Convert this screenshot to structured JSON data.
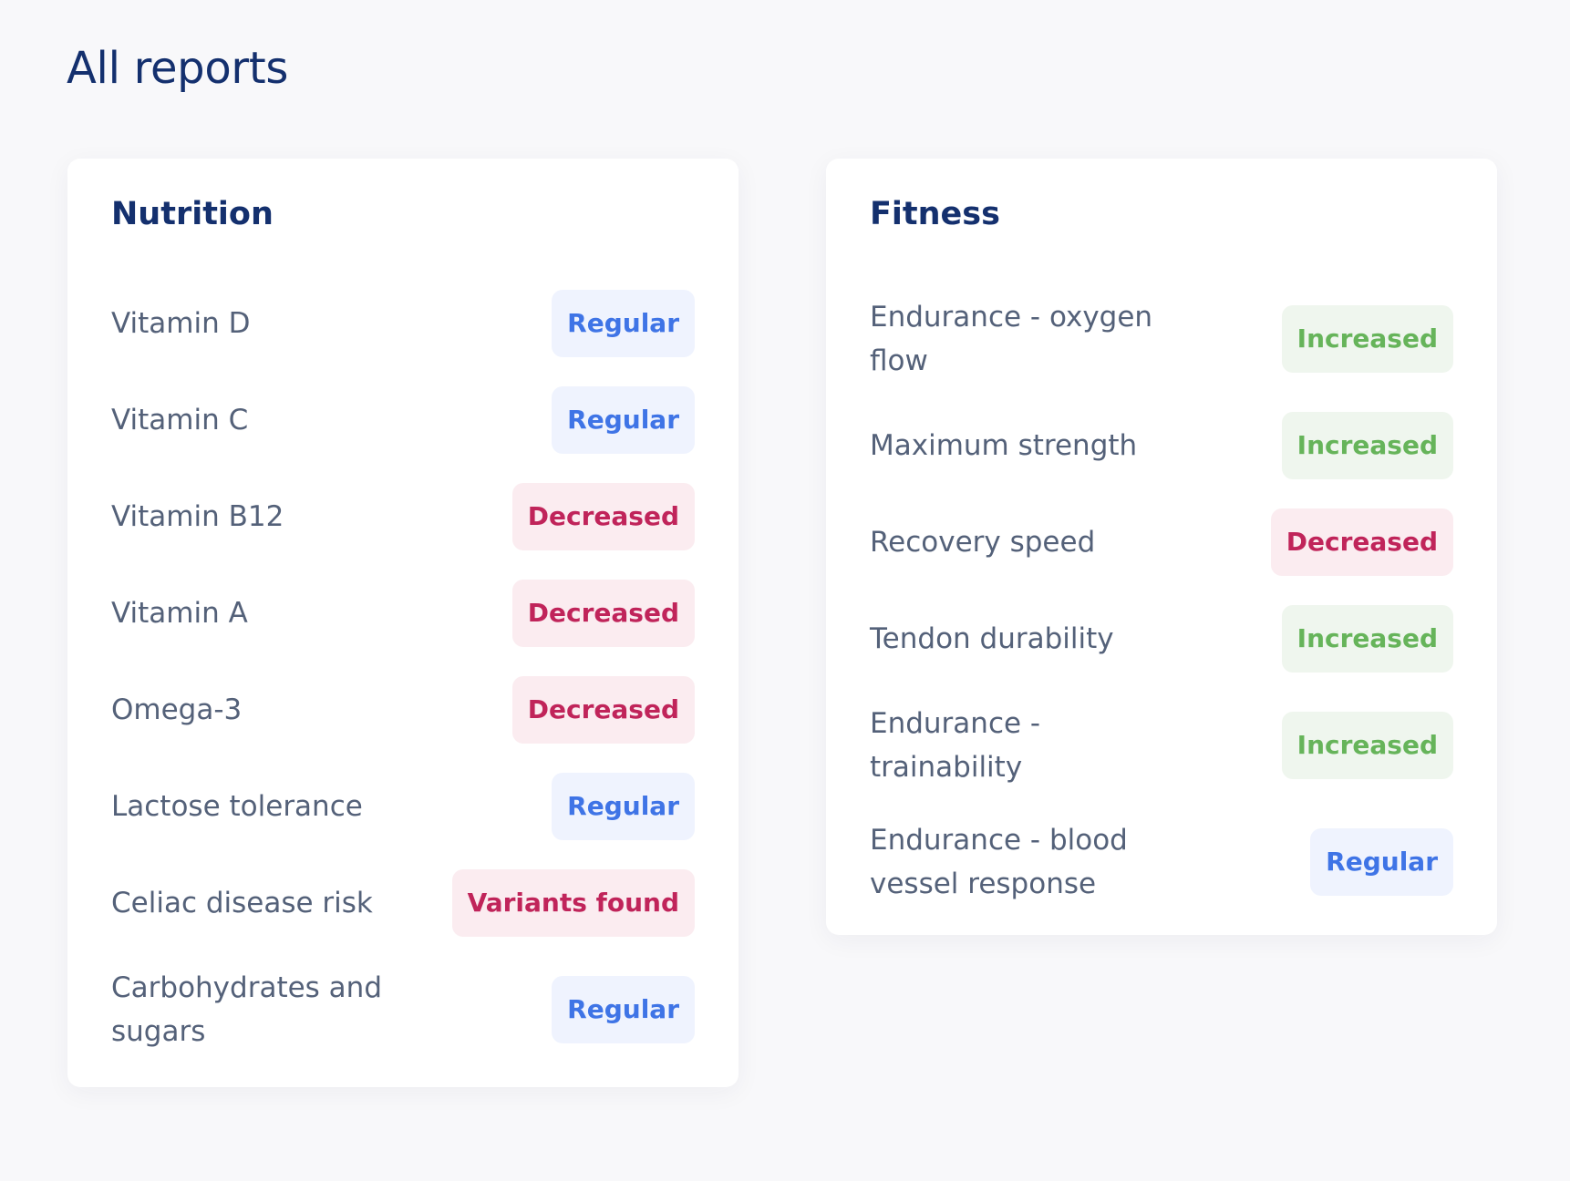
{
  "page_title": "All reports",
  "nutrition": {
    "title": "Nutrition",
    "items": [
      {
        "label": "Vitamin D",
        "status": "Regular",
        "status_type": "regular"
      },
      {
        "label": "Vitamin C",
        "status": "Regular",
        "status_type": "regular"
      },
      {
        "label": "Vitamin B12",
        "status": "Decreased",
        "status_type": "decreased"
      },
      {
        "label": "Vitamin A",
        "status": "Decreased",
        "status_type": "decreased"
      },
      {
        "label": "Omega-3",
        "status": "Decreased",
        "status_type": "decreased"
      },
      {
        "label": "Lactose tolerance",
        "status": "Regular",
        "status_type": "regular"
      },
      {
        "label": "Celiac disease risk",
        "status": "Variants found",
        "status_type": "decreased"
      },
      {
        "label": "Carbohydrates and sugars",
        "status": "Regular",
        "status_type": "regular"
      }
    ]
  },
  "fitness": {
    "title": "Fitness",
    "items": [
      {
        "label": "Endurance - oxygen flow",
        "status": "Increased",
        "status_type": "increased"
      },
      {
        "label": "Maximum strength",
        "status": "Increased",
        "status_type": "increased"
      },
      {
        "label": "Recovery speed",
        "status": "Decreased",
        "status_type": "decreased"
      },
      {
        "label": "Tendon durability",
        "status": "Increased",
        "status_type": "increased"
      },
      {
        "label": "Endurance - trainability",
        "status": "Increased",
        "status_type": "increased"
      },
      {
        "label": "Endurance - blood vessel response",
        "status": "Regular",
        "status_type": "regular"
      }
    ]
  },
  "colors": {
    "regular": "#3f74e6",
    "decreased": "#c0245a",
    "increased": "#66b45a",
    "title": "#14306e"
  }
}
